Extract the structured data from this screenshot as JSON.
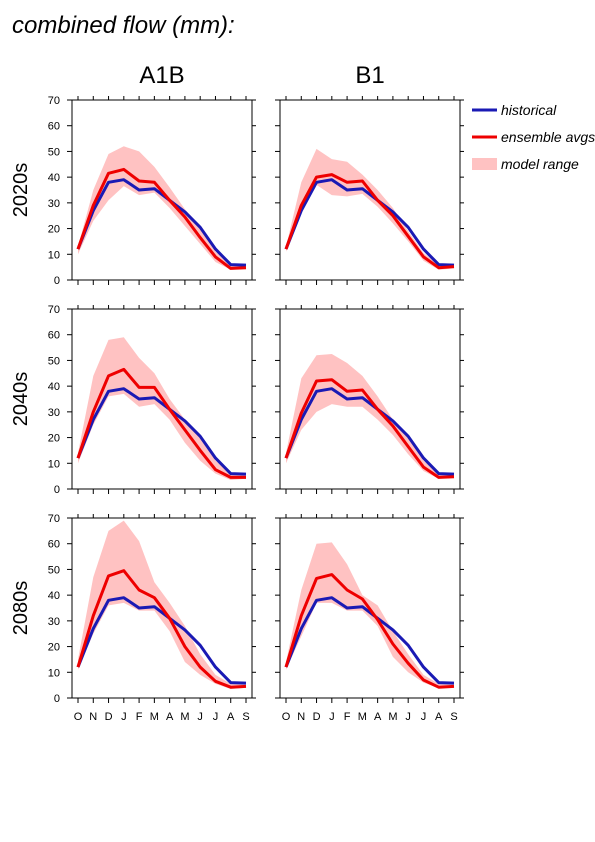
{
  "title": "combined flow (mm):",
  "colors": {
    "historical": "#1a1ab4",
    "ensemble": "#ee0000",
    "range": "#ffc2c2",
    "axis": "#000000"
  },
  "legend": {
    "placement": "right",
    "items": [
      {
        "label": "historical",
        "kind": "line",
        "color_key": "historical"
      },
      {
        "label": "ensemble avgs",
        "kind": "line",
        "color_key": "ensemble"
      },
      {
        "label": "model range",
        "kind": "area",
        "color_key": "range"
      }
    ]
  },
  "chart_data": {
    "type": "line",
    "months": [
      "O",
      "N",
      "D",
      "J",
      "F",
      "M",
      "A",
      "M",
      "J",
      "J",
      "A",
      "S"
    ],
    "ylim": [
      0,
      70
    ],
    "yticks": [
      0,
      10,
      20,
      30,
      40,
      50,
      60,
      70
    ],
    "scenarios": [
      "A1B",
      "B1"
    ],
    "periods": [
      "2020s",
      "2040s",
      "2080s"
    ],
    "historical": [
      12,
      27,
      38,
      39,
      35,
      35.5,
      31,
      26.5,
      20.5,
      12,
      6,
      5.8
    ],
    "panels": [
      {
        "row": 0,
        "col": 0,
        "ensemble": [
          12,
          29,
          41.5,
          43,
          38.5,
          38,
          31,
          24.5,
          16.5,
          9,
          4.5,
          4.8
        ],
        "range_min": [
          10,
          23,
          31,
          36.5,
          33,
          34,
          28,
          21,
          14,
          7,
          4,
          4.3
        ],
        "range_max": [
          13,
          35,
          49,
          52,
          50,
          44,
          36,
          27.5,
          21,
          11,
          6,
          5.8
        ]
      },
      {
        "row": 0,
        "col": 1,
        "ensemble": [
          12,
          29,
          40,
          41,
          38,
          38.5,
          31,
          25,
          17,
          9,
          4.8,
          5.2
        ],
        "range_min": [
          11,
          26,
          37,
          33,
          32.5,
          33.5,
          28.5,
          22,
          15,
          7.5,
          4,
          4.5
        ],
        "range_max": [
          13,
          38,
          51,
          47,
          46,
          41,
          35,
          28,
          19,
          10.5,
          6,
          6
        ]
      },
      {
        "row": 1,
        "col": 0,
        "ensemble": [
          12,
          30,
          44,
          46.5,
          39.5,
          39.5,
          31,
          23,
          15,
          7.5,
          4.5,
          4.5
        ],
        "range_min": [
          10,
          25,
          36,
          37,
          32,
          33,
          27,
          18,
          11,
          6,
          3.5,
          4
        ],
        "range_max": [
          14,
          44,
          58,
          59,
          51,
          45,
          35,
          27,
          20,
          11,
          6,
          6
        ]
      },
      {
        "row": 1,
        "col": 1,
        "ensemble": [
          12,
          29.5,
          42,
          42.5,
          38,
          38.5,
          31,
          24.5,
          16.5,
          8.5,
          4.5,
          4.8
        ],
        "range_min": [
          10,
          23,
          30,
          33,
          32,
          32,
          27,
          21,
          13.5,
          7,
          4,
          4.3
        ],
        "range_max": [
          14,
          43,
          52,
          52.5,
          49,
          44,
          36,
          27,
          20,
          11,
          6,
          6
        ]
      },
      {
        "row": 2,
        "col": 0,
        "ensemble": [
          12,
          32,
          47.5,
          49.5,
          42,
          39,
          31,
          20,
          12,
          6.5,
          4.2,
          4.5
        ],
        "range_min": [
          11,
          25,
          36,
          37,
          34,
          34,
          26,
          14,
          9,
          5.5,
          3.5,
          4
        ],
        "range_max": [
          15,
          47,
          65,
          69,
          61,
          45,
          37,
          28,
          17,
          9,
          5.5,
          6
        ]
      },
      {
        "row": 2,
        "col": 1,
        "ensemble": [
          12,
          32,
          46.5,
          48,
          42,
          38.5,
          30.5,
          21,
          13.5,
          7,
          4.2,
          4.5
        ],
        "range_min": [
          11,
          24,
          37,
          37,
          34,
          34,
          28,
          16,
          10,
          6,
          3.8,
          4.3
        ],
        "range_max": [
          14,
          42,
          60,
          60.5,
          52,
          40,
          36,
          26,
          17,
          9,
          5.5,
          5.8
        ]
      }
    ]
  }
}
